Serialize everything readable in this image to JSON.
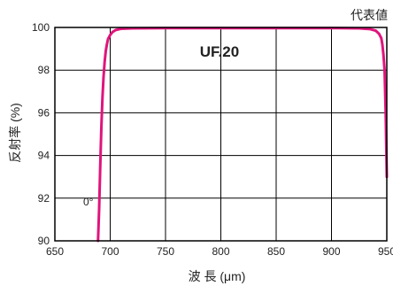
{
  "chart_data": {
    "type": "line",
    "corner_label": "代表値",
    "series_label": "UF.20",
    "xlabel": "波 長 (μm)",
    "ylabel": "反射率 (%)",
    "annotation": "0°",
    "xlim": [
      650,
      950
    ],
    "ylim": [
      90,
      100
    ],
    "xticks": [
      "650",
      "700",
      "750",
      "800",
      "850",
      "900",
      "950"
    ],
    "yticks": [
      "90",
      "92",
      "94",
      "96",
      "98",
      "100"
    ],
    "grid": true,
    "colors": {
      "line": "#e0147c",
      "grid": "#000000"
    },
    "series": [
      {
        "x": [
          689,
          690,
          691,
          692,
          693,
          694,
          695,
          696,
          697,
          698,
          700,
          702,
          705,
          710,
          720,
          750,
          800,
          850,
          900,
          925,
          935,
          940,
          943,
          945,
          946,
          947,
          948,
          948.5,
          949,
          949.5,
          950
        ],
        "y": [
          90.0,
          91.5,
          93.5,
          95.3,
          96.7,
          97.7,
          98.4,
          98.9,
          99.2,
          99.45,
          99.65,
          99.78,
          99.88,
          99.94,
          99.96,
          99.97,
          99.97,
          99.97,
          99.97,
          99.96,
          99.92,
          99.85,
          99.7,
          99.5,
          99.2,
          98.7,
          98.0,
          97.0,
          96.0,
          94.5,
          93.0
        ]
      }
    ]
  }
}
